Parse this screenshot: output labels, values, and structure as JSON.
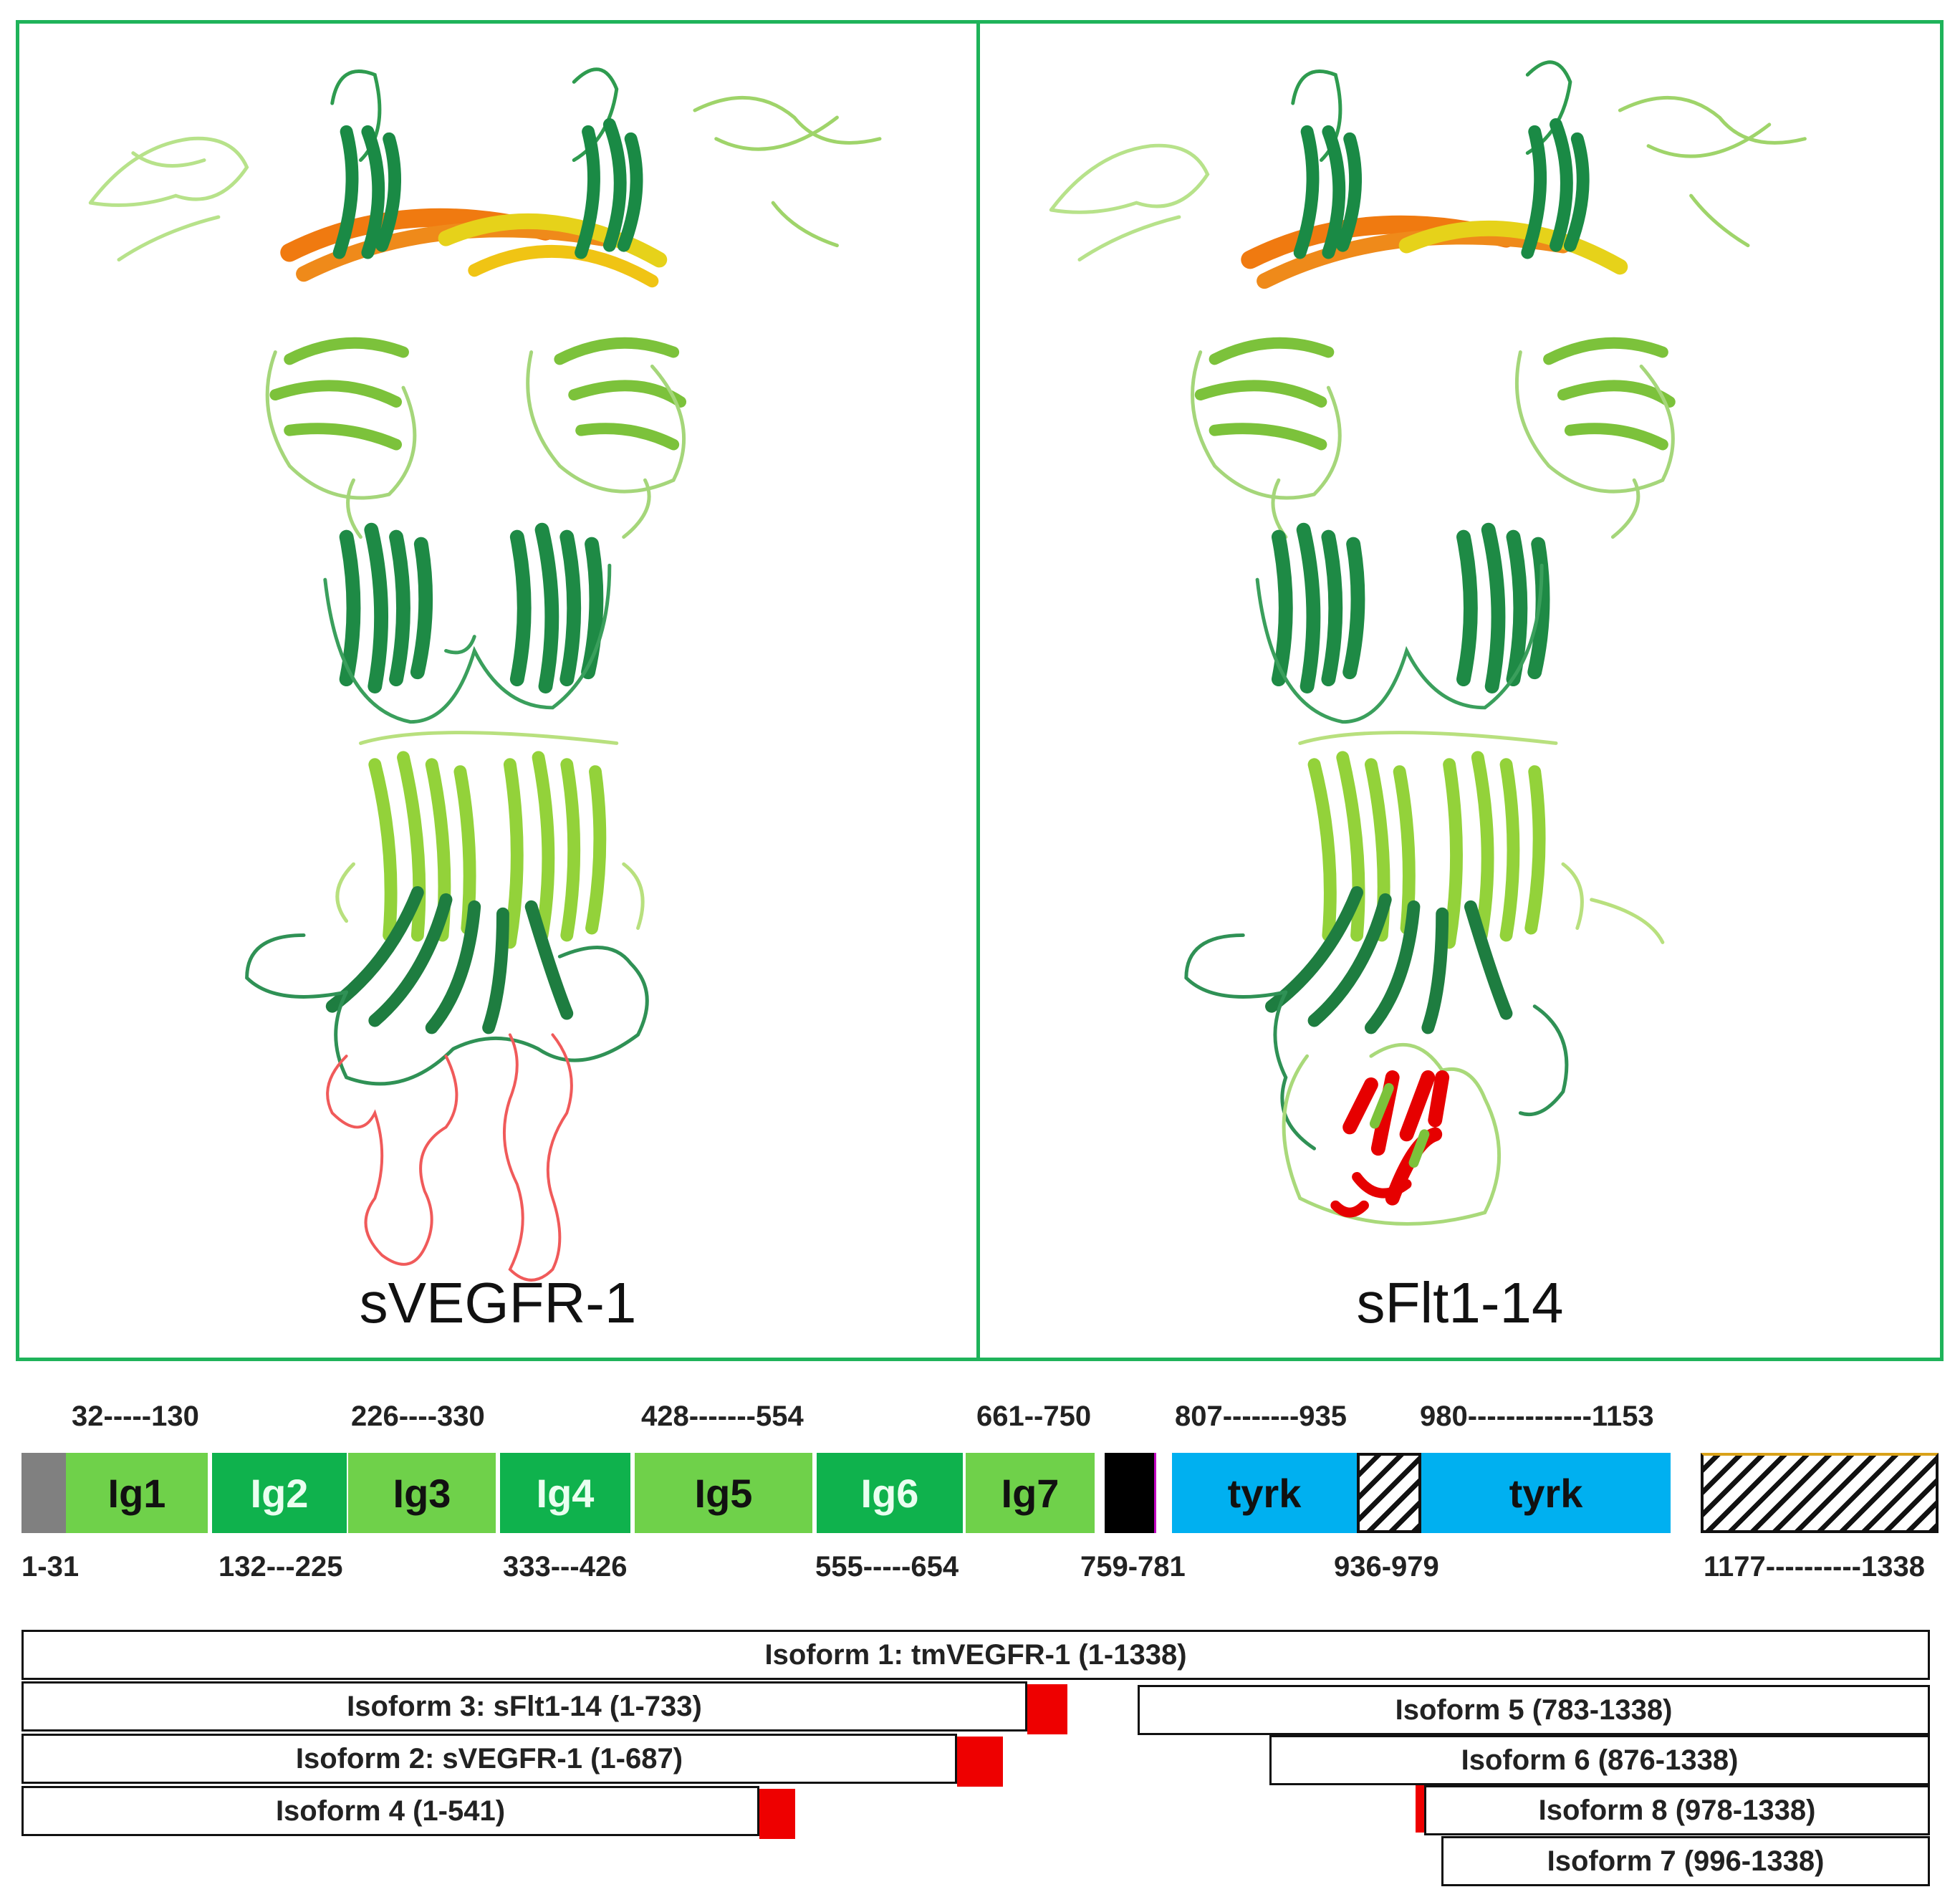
{
  "panels": {
    "left": {
      "title": "sVEGFR-1"
    },
    "right": {
      "title": "sFlt1-14"
    }
  },
  "colors": {
    "panel_border": "#1fb35a",
    "ig_light": "#6fd14a",
    "ig_dark": "#0fb24d",
    "signal": "#808080",
    "transmembrane": "#000000",
    "kinase": "#00b0f0",
    "unique_tail": "#ee0000"
  },
  "domain_map": {
    "domains": [
      {
        "label": "",
        "kind": "signal-peptide"
      },
      {
        "label": "Ig1"
      },
      {
        "label": "Ig2"
      },
      {
        "label": "Ig3"
      },
      {
        "label": "Ig4"
      },
      {
        "label": "Ig5"
      },
      {
        "label": "Ig6"
      },
      {
        "label": "Ig7"
      },
      {
        "label": "",
        "kind": "transmembrane"
      },
      {
        "label": "tyrk"
      },
      {
        "label": "",
        "kind": "kinase-insert"
      },
      {
        "label": "tyrk"
      },
      {
        "label": "",
        "kind": "c-terminal-tail"
      }
    ],
    "top_ranges": [
      "32-----130",
      "226----330",
      "428-------554",
      "661--750",
      "807--------935",
      "980-------------1153"
    ],
    "bottom_ranges": [
      "1-31",
      "132---225",
      "333---426",
      "555-----654",
      "759-781",
      "936-979",
      "1177----------1338"
    ]
  },
  "isoforms": [
    {
      "label": "Isoform 1: tmVEGFR-1  (1-1338)"
    },
    {
      "label": "Isoform 3: sFlt1-14 (1-733)"
    },
    {
      "label": "Isoform 5 (783-1338)"
    },
    {
      "label": "Isoform 2: sVEGFR-1  (1-687)"
    },
    {
      "label": "Isoform 6 (876-1338)"
    },
    {
      "label": "Isoform 4 (1-541)"
    },
    {
      "label": "Isoform 8 (978-1338)"
    },
    {
      "label": "Isoform 7 (996-1338)"
    }
  ]
}
